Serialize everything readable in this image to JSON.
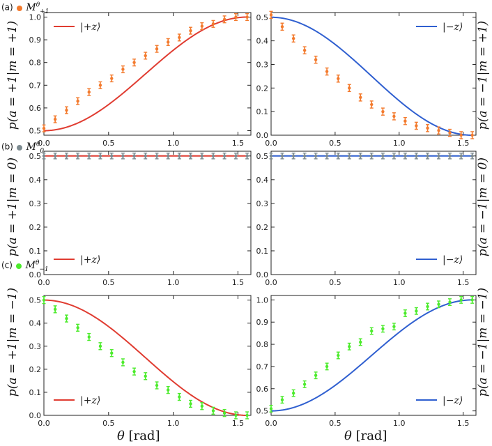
{
  "labels": {
    "a": {
      "tag": "(a)",
      "symbol": "M",
      "sup": "θ",
      "sub": "+1",
      "color": "#F37A2D"
    },
    "b": {
      "tag": "(b)",
      "symbol": "M",
      "sup": "θ",
      "sub": "0",
      "color": "#7C8A90"
    },
    "c": {
      "tag": "(c)",
      "symbol": "M",
      "sup": "θ",
      "sub": "−1",
      "color": "#4CEB2C"
    }
  },
  "ylabels": {
    "a_left": "p(a = +1|m = +1)",
    "a_right": "p(a = −1|m = +1)",
    "b_left": "p(a = +1|m = 0)",
    "b_right": "p(a = −1|m = 0)",
    "c_left": "p(a = +1|m = −1)",
    "c_right": "p(a = −1|m = −1)"
  },
  "xlabel": {
    "symbol": "θ",
    "unit": "[rad]"
  },
  "chart_data": [
    {
      "id": "a-left",
      "type": "line+errorbar",
      "xlim": [
        0,
        1.6
      ],
      "ylim": [
        0.48,
        1.02
      ],
      "xticks": [
        "0.0",
        "0.5",
        "1.0",
        "1.5"
      ],
      "xtick_values": [
        0,
        0.5,
        1.0,
        1.5
      ],
      "yticks": [
        "0.5",
        "0.6",
        "0.7",
        "0.8",
        "0.9",
        "1.0"
      ],
      "ytick_values": [
        0.5,
        0.6,
        0.7,
        0.8,
        0.9,
        1.0
      ],
      "legend": {
        "label": "|+z⟩",
        "position": "top-left"
      },
      "theory": {
        "formula": "1-0.5cos^2",
        "color": "#E03C31"
      },
      "points": {
        "color": "#F37A2D",
        "x": [
          0,
          0.087,
          0.175,
          0.262,
          0.349,
          0.436,
          0.524,
          0.611,
          0.698,
          0.785,
          0.873,
          0.96,
          1.047,
          1.134,
          1.222,
          1.309,
          1.396,
          1.484,
          1.571
        ],
        "y": [
          0.51,
          0.55,
          0.59,
          0.63,
          0.67,
          0.7,
          0.73,
          0.77,
          0.8,
          0.83,
          0.86,
          0.89,
          0.91,
          0.94,
          0.96,
          0.97,
          0.99,
          1.0,
          1.0
        ],
        "err": 0.015
      }
    },
    {
      "id": "a-right",
      "type": "line+errorbar",
      "xlim": [
        0,
        1.6
      ],
      "ylim": [
        0,
        0.52
      ],
      "xticks": [
        "0.0",
        "0.5",
        "1.0",
        "1.5"
      ],
      "xtick_values": [
        0,
        0.5,
        1.0,
        1.5
      ],
      "yticks": [
        "0.0",
        "0.1",
        "0.2",
        "0.3",
        "0.4",
        "0.5"
      ],
      "ytick_values": [
        0,
        0.1,
        0.2,
        0.3,
        0.4,
        0.5
      ],
      "legend": {
        "label": "|−z⟩",
        "position": "top-right"
      },
      "theory": {
        "formula": "0.5cos^2",
        "color": "#2F5FD0"
      },
      "points": {
        "color": "#F37A2D",
        "x": [
          0,
          0.087,
          0.175,
          0.262,
          0.349,
          0.436,
          0.524,
          0.611,
          0.698,
          0.785,
          0.873,
          0.96,
          1.047,
          1.134,
          1.222,
          1.309,
          1.396,
          1.484,
          1.571
        ],
        "y": [
          0.51,
          0.46,
          0.41,
          0.36,
          0.32,
          0.27,
          0.24,
          0.2,
          0.16,
          0.13,
          0.1,
          0.08,
          0.06,
          0.04,
          0.03,
          0.02,
          0.01,
          0.0,
          0.0
        ],
        "err": 0.015
      }
    },
    {
      "id": "b-left",
      "type": "line+errorbar",
      "xlim": [
        0,
        1.6
      ],
      "ylim": [
        0,
        0.52
      ],
      "xticks": [
        "0.0",
        "0.5",
        "1.0",
        "1.5"
      ],
      "xtick_values": [
        0,
        0.5,
        1.0,
        1.5
      ],
      "yticks": [
        "0.0",
        "0.1",
        "0.2",
        "0.3",
        "0.4",
        "0.5"
      ],
      "ytick_values": [
        0,
        0.1,
        0.2,
        0.3,
        0.4,
        0.5
      ],
      "legend": {
        "label": "|+z⟩",
        "position": "bottom-left"
      },
      "theory": {
        "formula": "const0.5",
        "color": "#E03C31"
      },
      "points": {
        "color": "#7C8A90",
        "x": [
          0,
          0.087,
          0.175,
          0.262,
          0.349,
          0.436,
          0.524,
          0.611,
          0.698,
          0.785,
          0.873,
          0.96,
          1.047,
          1.134,
          1.222,
          1.309,
          1.396,
          1.484,
          1.571
        ],
        "y": [
          0.5,
          0.5,
          0.5,
          0.5,
          0.5,
          0.5,
          0.5,
          0.5,
          0.5,
          0.5,
          0.5,
          0.5,
          0.5,
          0.5,
          0.5,
          0.5,
          0.5,
          0.5,
          0.5
        ],
        "err": 0.012
      }
    },
    {
      "id": "b-right",
      "type": "line+errorbar",
      "xlim": [
        0,
        1.6
      ],
      "ylim": [
        0,
        0.52
      ],
      "xticks": [
        "0.0",
        "0.5",
        "1.0",
        "1.5"
      ],
      "xtick_values": [
        0,
        0.5,
        1.0,
        1.5
      ],
      "yticks": [
        "0.0",
        "0.1",
        "0.2",
        "0.3",
        "0.4",
        "0.5"
      ],
      "ytick_values": [
        0,
        0.1,
        0.2,
        0.3,
        0.4,
        0.5
      ],
      "legend": {
        "label": "|−z⟩",
        "position": "bottom-right"
      },
      "theory": {
        "formula": "const0.5",
        "color": "#2F5FD0"
      },
      "points": {
        "color": "#7C8A90",
        "x": [
          0,
          0.087,
          0.175,
          0.262,
          0.349,
          0.436,
          0.524,
          0.611,
          0.698,
          0.785,
          0.873,
          0.96,
          1.047,
          1.134,
          1.222,
          1.309,
          1.396,
          1.484,
          1.571
        ],
        "y": [
          0.5,
          0.5,
          0.5,
          0.5,
          0.5,
          0.5,
          0.5,
          0.5,
          0.5,
          0.5,
          0.5,
          0.5,
          0.5,
          0.5,
          0.5,
          0.5,
          0.5,
          0.5,
          0.5
        ],
        "err": 0.012
      }
    },
    {
      "id": "c-left",
      "type": "line+errorbar",
      "xlim": [
        0,
        1.6
      ],
      "ylim": [
        0,
        0.52
      ],
      "xticks": [
        "0.0",
        "0.5",
        "1.0",
        "1.5"
      ],
      "xtick_values": [
        0,
        0.5,
        1.0,
        1.5
      ],
      "yticks": [
        "0.0",
        "0.1",
        "0.2",
        "0.3",
        "0.4",
        "0.5"
      ],
      "ytick_values": [
        0,
        0.1,
        0.2,
        0.3,
        0.4,
        0.5
      ],
      "legend": {
        "label": "|+z⟩",
        "position": "bottom-left"
      },
      "theory": {
        "formula": "0.5cos^2",
        "color": "#E03C31"
      },
      "points": {
        "color": "#4CEB2C",
        "x": [
          0,
          0.087,
          0.175,
          0.262,
          0.349,
          0.436,
          0.524,
          0.611,
          0.698,
          0.785,
          0.873,
          0.96,
          1.047,
          1.134,
          1.222,
          1.309,
          1.396,
          1.484,
          1.571
        ],
        "y": [
          0.5,
          0.46,
          0.42,
          0.38,
          0.34,
          0.3,
          0.27,
          0.23,
          0.19,
          0.17,
          0.13,
          0.11,
          0.08,
          0.05,
          0.04,
          0.02,
          0.01,
          0.0,
          0.0
        ],
        "err": 0.015
      }
    },
    {
      "id": "c-right",
      "type": "line+errorbar",
      "xlim": [
        0,
        1.6
      ],
      "ylim": [
        0.48,
        1.02
      ],
      "xticks": [
        "0.0",
        "0.5",
        "1.0",
        "1.5"
      ],
      "xtick_values": [
        0,
        0.5,
        1.0,
        1.5
      ],
      "yticks": [
        "0.5",
        "0.6",
        "0.7",
        "0.8",
        "0.9",
        "1.0"
      ],
      "ytick_values": [
        0.5,
        0.6,
        0.7,
        0.8,
        0.9,
        1.0
      ],
      "legend": {
        "label": "|−z⟩",
        "position": "bottom-right"
      },
      "theory": {
        "formula": "1-0.5cos^2",
        "color": "#2F5FD0"
      },
      "points": {
        "color": "#4CEB2C",
        "x": [
          0,
          0.087,
          0.175,
          0.262,
          0.349,
          0.436,
          0.524,
          0.611,
          0.698,
          0.785,
          0.873,
          0.96,
          1.047,
          1.134,
          1.222,
          1.309,
          1.396,
          1.484,
          1.571
        ],
        "y": [
          0.51,
          0.55,
          0.58,
          0.62,
          0.66,
          0.7,
          0.75,
          0.79,
          0.81,
          0.86,
          0.87,
          0.88,
          0.94,
          0.95,
          0.97,
          0.98,
          0.99,
          1.0,
          1.0
        ],
        "err": 0.015
      }
    }
  ]
}
